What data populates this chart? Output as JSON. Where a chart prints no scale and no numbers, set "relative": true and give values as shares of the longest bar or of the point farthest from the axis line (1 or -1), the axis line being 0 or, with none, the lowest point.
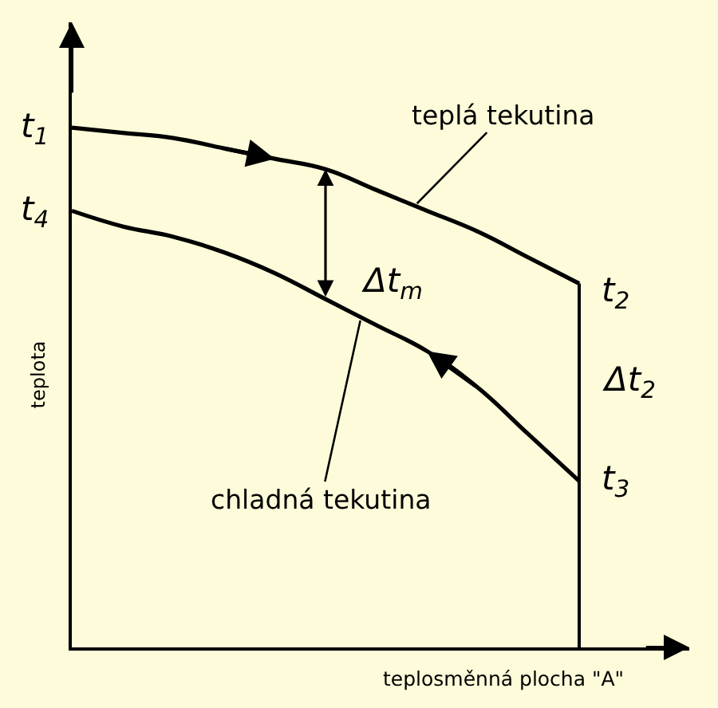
{
  "chart_data": {
    "type": "line",
    "relative": true,
    "xlabel": "teplosměnná plocha \"A\"",
    "ylabel": "teplota",
    "categories": [
      null,
      null,
      null,
      null,
      null,
      null,
      null,
      null,
      null,
      null,
      null
    ],
    "series": [
      {
        "name": "teplá tekutina",
        "color": "#000000",
        "values": [
          1,
          0.99,
          0.98,
          0.96,
          0.94,
          0.92,
          0.88,
          0.84,
          0.8,
          0.75,
          0.7
        ]
      },
      {
        "name": "chladná tekutina",
        "color": "#000000",
        "values": [
          0.84,
          0.81,
          0.79,
          0.76,
          0.72,
          0.67,
          0.62,
          0.57,
          0.5,
          0.41,
          0.32
        ]
      }
    ],
    "annotations": [
      "t$_{1}$",
      "t$_{4}$",
      "t$_{2}$",
      "Δt$_{2}$",
      "t$_{3}$",
      "Δt$_{m}$"
    ]
  }
}
